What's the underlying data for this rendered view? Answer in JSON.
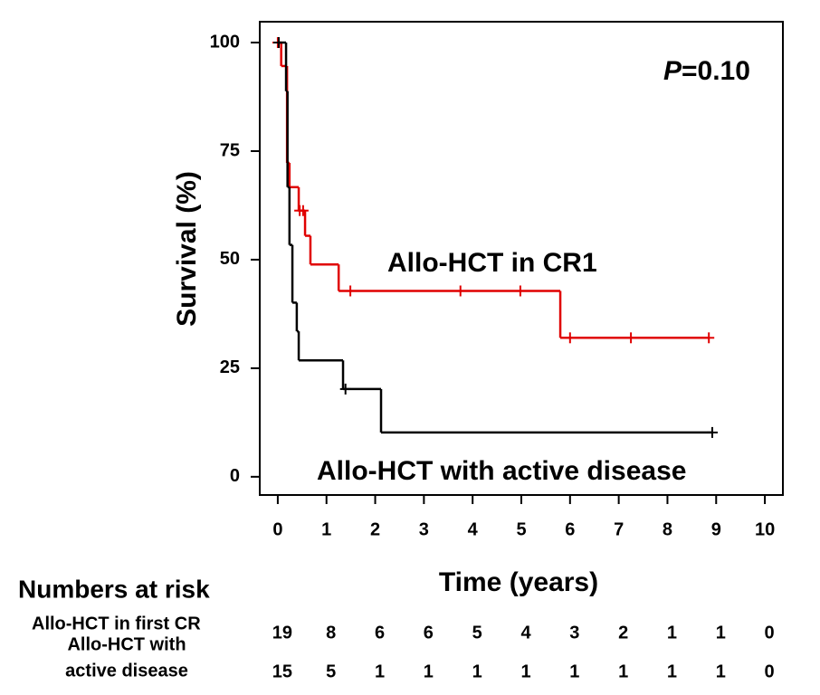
{
  "chart_data": {
    "type": "step",
    "y_label": "Survival (%)",
    "x_label": "Time (years)",
    "annotation": {
      "italic": "P",
      "rest": "=0.10"
    },
    "xlim": [
      -0.37,
      10.37
    ],
    "ylim": [
      -4.2,
      104.8
    ],
    "xticks": [
      0,
      1,
      2,
      3,
      4,
      5,
      6,
      7,
      8,
      9,
      10
    ],
    "yticks": [
      0,
      25,
      50,
      75,
      100
    ],
    "series": [
      {
        "name": "Allo-HCT in CR1",
        "color": "#e00000",
        "x": [
          0,
          0.07,
          0.19,
          0.24,
          0.43,
          0.56,
          0.67,
          1.25,
          5.8
        ],
        "values": [
          100,
          94.6,
          72.3,
          66.7,
          61.3,
          55.5,
          48.9,
          42.8,
          32
        ],
        "censor_x": [
          0,
          0.45,
          0.52,
          1.49,
          3.75,
          4.98,
          6.0,
          7.25,
          8.85
        ],
        "censor_y": [
          100,
          61.3,
          61.3,
          42.8,
          42.8,
          42.8,
          32,
          32,
          32
        ]
      },
      {
        "name": "Allo-HCT with active disease",
        "color": "#000000",
        "x": [
          0,
          0.17,
          0.2,
          0.24,
          0.3,
          0.39,
          0.43,
          1.34,
          2.12
        ],
        "values": [
          100,
          88.8,
          66.7,
          53.4,
          40.1,
          33.5,
          26.8,
          20.2,
          10.2
        ],
        "censor_x": [
          0.02,
          1.39,
          8.92
        ],
        "censor_y": [
          100,
          20.2,
          10.2
        ]
      }
    ],
    "risk_table": {
      "title": "Numbers at risk",
      "rows": [
        {
          "label": [
            "Allo-HCT in first CR"
          ],
          "values": [
            19,
            8,
            6,
            6,
            5,
            4,
            3,
            2,
            1,
            1,
            0
          ]
        },
        {
          "label": [
            "Allo-HCT with",
            "active disease"
          ],
          "values": [
            15,
            5,
            1,
            1,
            1,
            1,
            1,
            1,
            1,
            1,
            0
          ]
        }
      ]
    }
  }
}
